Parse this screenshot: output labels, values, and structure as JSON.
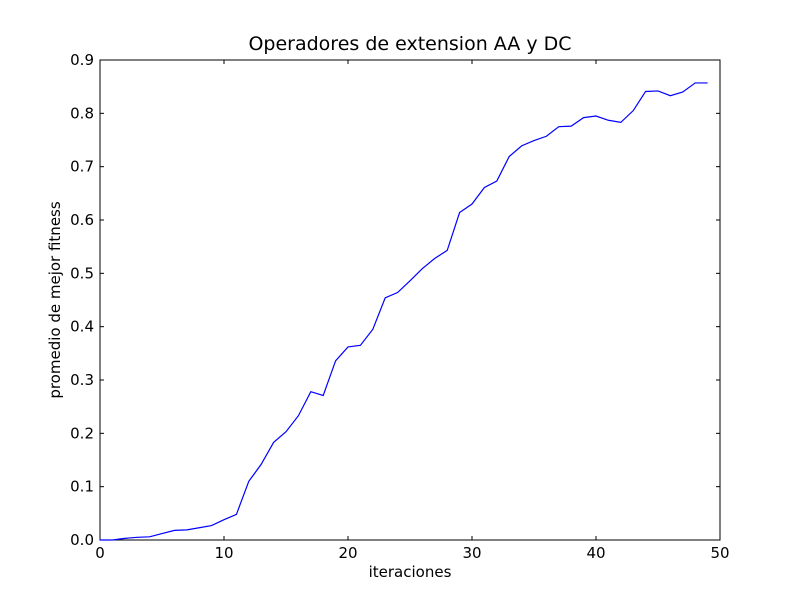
{
  "chart_data": {
    "type": "line",
    "title": "Operadores de extension AA y DC",
    "xlabel": "iteraciones",
    "ylabel": "promedio de mejor fitness",
    "xlim": [
      0,
      50
    ],
    "ylim": [
      0.0,
      0.9
    ],
    "xticks": [
      0,
      10,
      20,
      30,
      40,
      50
    ],
    "xtick_labels": [
      "0",
      "10",
      "20",
      "30",
      "40",
      "50"
    ],
    "yticks": [
      0.0,
      0.1,
      0.2,
      0.3,
      0.4,
      0.5,
      0.6,
      0.7,
      0.8,
      0.9
    ],
    "ytick_labels": [
      "0.0",
      "0.1",
      "0.2",
      "0.3",
      "0.4",
      "0.5",
      "0.6",
      "0.7",
      "0.8",
      "0.9"
    ],
    "grid": false,
    "series": [
      {
        "color": "#0000ff",
        "x": [
          0,
          1,
          2,
          3,
          4,
          5,
          6,
          7,
          8,
          9,
          10,
          11,
          12,
          13,
          14,
          15,
          16,
          17,
          18,
          19,
          20,
          21,
          22,
          23,
          24,
          25,
          26,
          27,
          28,
          29,
          30,
          31,
          32,
          33,
          34,
          35,
          36,
          37,
          38,
          39,
          40,
          41,
          42,
          43,
          44,
          45,
          46,
          47,
          48,
          49
        ],
        "y": [
          0.0,
          0.0,
          0.003,
          0.005,
          0.006,
          0.012,
          0.018,
          0.019,
          0.023,
          0.027,
          0.038,
          0.048,
          0.11,
          0.142,
          0.183,
          0.203,
          0.233,
          0.278,
          0.271,
          0.336,
          0.362,
          0.365,
          0.395,
          0.454,
          0.464,
          0.486,
          0.509,
          0.528,
          0.543,
          0.614,
          0.63,
          0.661,
          0.673,
          0.719,
          0.739,
          0.749,
          0.757,
          0.775,
          0.776,
          0.792,
          0.795,
          0.787,
          0.783,
          0.805,
          0.841,
          0.842,
          0.833,
          0.84,
          0.857,
          0.857
        ]
      }
    ]
  }
}
